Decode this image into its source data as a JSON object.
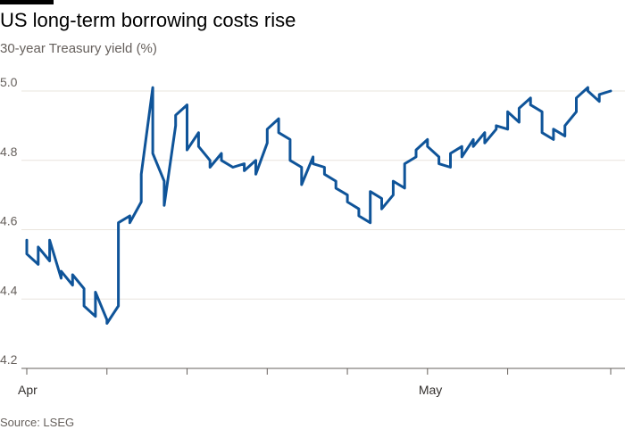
{
  "header": {
    "title": "US long-term borrowing costs rise",
    "subtitle": "30-year Treasury yield (%)"
  },
  "footer": {
    "source": "Source: LSEG"
  },
  "colors": {
    "line": "#0f5499",
    "grid": "#e9e4dd",
    "axis": "#66605c"
  },
  "chart_data": {
    "type": "line",
    "title": "US long-term borrowing costs rise",
    "subtitle": "30-year Treasury yield (%)",
    "xlabel": "",
    "ylabel": "",
    "ylim": [
      4.2,
      5.0
    ],
    "yticks": [
      4.2,
      4.4,
      4.6,
      4.8,
      5.0
    ],
    "ytick_labels": [
      "4.2",
      "4.4",
      "4.6",
      "4.8",
      "5.0"
    ],
    "xlim": [
      "2025-04-01",
      "2025-05-22"
    ],
    "xticks": [
      "2025-04-01",
      "2025-04-08",
      "2025-04-15",
      "2025-04-22",
      "2025-04-29",
      "2025-05-06",
      "2025-05-13",
      "2025-05-22"
    ],
    "xtick_labels": [
      "Apr",
      "",
      "",
      "",
      "",
      "May",
      "",
      ""
    ],
    "grid": true,
    "legend": "none",
    "series": [
      {
        "x": [
          "2025-04-01",
          "2025-04-01",
          "2025-04-02",
          "2025-04-02",
          "2025-04-03",
          "2025-04-03",
          "2025-04-04",
          "2025-04-04",
          "2025-04-05",
          "2025-04-05",
          "2025-04-06",
          "2025-04-06",
          "2025-04-07",
          "2025-04-07",
          "2025-04-08",
          "2025-04-08",
          "2025-04-09",
          "2025-04-09",
          "2025-04-09",
          "2025-04-10",
          "2025-04-10",
          "2025-04-11",
          "2025-04-11",
          "2025-04-12",
          "2025-04-12",
          "2025-04-13",
          "2025-04-13",
          "2025-04-14",
          "2025-04-14",
          "2025-04-15",
          "2025-04-15",
          "2025-04-16",
          "2025-04-16",
          "2025-04-17",
          "2025-04-17",
          "2025-04-18",
          "2025-04-18",
          "2025-04-19",
          "2025-04-19",
          "2025-04-20",
          "2025-04-20",
          "2025-04-21",
          "2025-04-21",
          "2025-04-22",
          "2025-04-22",
          "2025-04-23",
          "2025-04-23",
          "2025-04-24",
          "2025-04-24",
          "2025-04-25",
          "2025-04-25",
          "2025-04-26",
          "2025-04-26",
          "2025-04-27",
          "2025-04-27",
          "2025-04-28",
          "2025-04-28",
          "2025-04-29",
          "2025-04-29",
          "2025-04-30",
          "2025-04-30",
          "2025-05-01",
          "2025-05-01",
          "2025-05-02",
          "2025-05-02",
          "2025-05-03",
          "2025-05-03",
          "2025-05-04",
          "2025-05-04",
          "2025-05-05",
          "2025-05-05",
          "2025-05-06",
          "2025-05-06",
          "2025-05-07",
          "2025-05-07",
          "2025-05-08",
          "2025-05-08",
          "2025-05-09",
          "2025-05-09",
          "2025-05-10",
          "2025-05-10",
          "2025-05-11",
          "2025-05-11",
          "2025-05-12",
          "2025-05-12",
          "2025-05-13",
          "2025-05-13",
          "2025-05-14",
          "2025-05-14",
          "2025-05-15",
          "2025-05-15",
          "2025-05-16",
          "2025-05-16",
          "2025-05-17",
          "2025-05-17",
          "2025-05-18",
          "2025-05-18",
          "2025-05-19",
          "2025-05-19",
          "2025-05-20",
          "2025-05-20",
          "2025-05-21",
          "2025-05-21",
          "2025-05-22"
        ],
        "y": [
          4.57,
          4.53,
          4.5,
          4.55,
          4.51,
          4.57,
          4.46,
          4.48,
          4.44,
          4.47,
          4.43,
          4.38,
          4.35,
          4.42,
          4.34,
          4.33,
          4.38,
          4.55,
          4.62,
          4.64,
          4.62,
          4.68,
          4.76,
          5.01,
          4.82,
          4.74,
          4.67,
          4.9,
          4.93,
          4.96,
          4.83,
          4.88,
          4.84,
          4.8,
          4.78,
          4.82,
          4.8,
          4.78,
          4.78,
          4.79,
          4.77,
          4.8,
          4.76,
          4.85,
          4.89,
          4.92,
          4.88,
          4.86,
          4.8,
          4.78,
          4.73,
          4.81,
          4.79,
          4.78,
          4.76,
          4.74,
          4.72,
          4.7,
          4.68,
          4.66,
          4.64,
          4.62,
          4.71,
          4.69,
          4.66,
          4.7,
          4.74,
          4.72,
          4.79,
          4.81,
          4.83,
          4.86,
          4.84,
          4.81,
          4.79,
          4.78,
          4.82,
          4.84,
          4.81,
          4.86,
          4.84,
          4.88,
          4.85,
          4.89,
          4.9,
          4.89,
          4.94,
          4.91,
          4.95,
          4.98,
          4.96,
          4.94,
          4.88,
          4.86,
          4.89,
          4.87,
          4.9,
          4.94,
          4.98,
          5.01,
          5.0,
          4.97,
          4.99,
          5.0
        ]
      }
    ]
  }
}
